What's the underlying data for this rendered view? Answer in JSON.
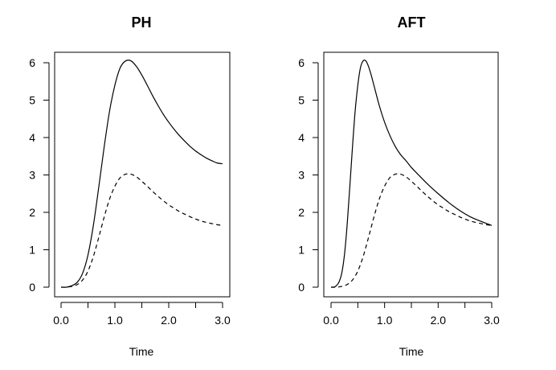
{
  "chart_data": [
    {
      "type": "line",
      "title": "PH",
      "xlabel": "Time",
      "ylabel": "",
      "xlim": [
        0,
        3
      ],
      "ylim": [
        0,
        6.2
      ],
      "xticks": [
        0.0,
        0.5,
        1.0,
        1.5,
        2.0,
        2.5,
        3.0
      ],
      "xtick_labels": [
        "0.0",
        "",
        "1.0",
        "",
        "2.0",
        "",
        "3.0"
      ],
      "yticks": [
        0,
        1,
        2,
        3,
        4,
        5,
        6
      ],
      "ytick_labels": [
        "0",
        "1",
        "2",
        "3",
        "4",
        "5",
        "6"
      ],
      "grid": false,
      "legend": "none",
      "series": [
        {
          "style": "solid",
          "x": [
            0.0,
            0.1,
            0.2,
            0.3,
            0.4,
            0.5,
            0.6,
            0.7,
            0.8,
            0.9,
            1.0,
            1.1,
            1.2,
            1.3,
            1.4,
            1.5,
            1.6,
            1.7,
            1.8,
            1.9,
            2.0,
            2.1,
            2.2,
            2.3,
            2.4,
            2.5,
            2.6,
            2.7,
            2.8,
            2.9,
            3.0
          ],
          "values": [
            0.0,
            0.0,
            0.04,
            0.13,
            0.37,
            0.86,
            1.65,
            2.67,
            3.74,
            4.7,
            5.4,
            5.87,
            6.05,
            6.05,
            5.9,
            5.67,
            5.4,
            5.12,
            4.86,
            4.62,
            4.41,
            4.22,
            4.05,
            3.9,
            3.76,
            3.64,
            3.54,
            3.45,
            3.38,
            3.32,
            3.3
          ]
        },
        {
          "style": "dashed",
          "x": [
            0.0,
            0.1,
            0.2,
            0.3,
            0.4,
            0.5,
            0.6,
            0.7,
            0.8,
            0.9,
            1.0,
            1.1,
            1.2,
            1.3,
            1.4,
            1.5,
            1.6,
            1.7,
            1.8,
            1.9,
            2.0,
            2.1,
            2.2,
            2.3,
            2.4,
            2.5,
            2.6,
            2.7,
            2.8,
            2.9,
            3.0
          ],
          "values": [
            0.0,
            0.0,
            0.02,
            0.07,
            0.19,
            0.43,
            0.82,
            1.33,
            1.87,
            2.35,
            2.7,
            2.93,
            3.02,
            3.02,
            2.95,
            2.83,
            2.7,
            2.56,
            2.43,
            2.31,
            2.2,
            2.11,
            2.02,
            1.95,
            1.88,
            1.82,
            1.77,
            1.73,
            1.7,
            1.67,
            1.65
          ]
        }
      ]
    },
    {
      "type": "line",
      "title": "AFT",
      "xlabel": "Time",
      "ylabel": "",
      "xlim": [
        0,
        3
      ],
      "ylim": [
        0,
        6.2
      ],
      "xticks": [
        0.0,
        0.5,
        1.0,
        1.5,
        2.0,
        2.5,
        3.0
      ],
      "xtick_labels": [
        "0.0",
        "",
        "1.0",
        "",
        "2.0",
        "",
        "3.0"
      ],
      "yticks": [
        0,
        1,
        2,
        3,
        4,
        5,
        6
      ],
      "ytick_labels": [
        "0",
        "1",
        "2",
        "3",
        "4",
        "5",
        "6"
      ],
      "grid": false,
      "legend": "none",
      "series": [
        {
          "style": "solid",
          "x": [
            0.0,
            0.05,
            0.1,
            0.15,
            0.2,
            0.25,
            0.3,
            0.35,
            0.4,
            0.45,
            0.5,
            0.55,
            0.6,
            0.65,
            0.7,
            0.75,
            0.8,
            0.9,
            1.0,
            1.1,
            1.2,
            1.3,
            1.4,
            1.5,
            1.6,
            1.8,
            2.0,
            2.2,
            2.4,
            2.6,
            2.8,
            3.0
          ],
          "values": [
            0.0,
            0.0,
            0.04,
            0.14,
            0.37,
            0.86,
            1.65,
            2.67,
            3.74,
            4.7,
            5.4,
            5.87,
            6.05,
            6.05,
            5.9,
            5.67,
            5.4,
            4.86,
            4.41,
            4.05,
            3.76,
            3.54,
            3.38,
            3.2,
            3.05,
            2.76,
            2.5,
            2.26,
            2.05,
            1.88,
            1.76,
            1.65
          ]
        },
        {
          "style": "dashed",
          "x": [
            0.0,
            0.1,
            0.2,
            0.3,
            0.4,
            0.5,
            0.6,
            0.7,
            0.8,
            0.9,
            1.0,
            1.1,
            1.2,
            1.3,
            1.4,
            1.5,
            1.6,
            1.7,
            1.8,
            1.9,
            2.0,
            2.1,
            2.2,
            2.3,
            2.4,
            2.5,
            2.6,
            2.7,
            2.8,
            2.9,
            3.0
          ],
          "values": [
            0.0,
            0.0,
            0.02,
            0.07,
            0.19,
            0.43,
            0.82,
            1.33,
            1.87,
            2.35,
            2.7,
            2.93,
            3.02,
            3.02,
            2.95,
            2.83,
            2.7,
            2.56,
            2.43,
            2.31,
            2.2,
            2.11,
            2.02,
            1.95,
            1.88,
            1.82,
            1.77,
            1.73,
            1.7,
            1.67,
            1.65
          ]
        }
      ]
    }
  ]
}
